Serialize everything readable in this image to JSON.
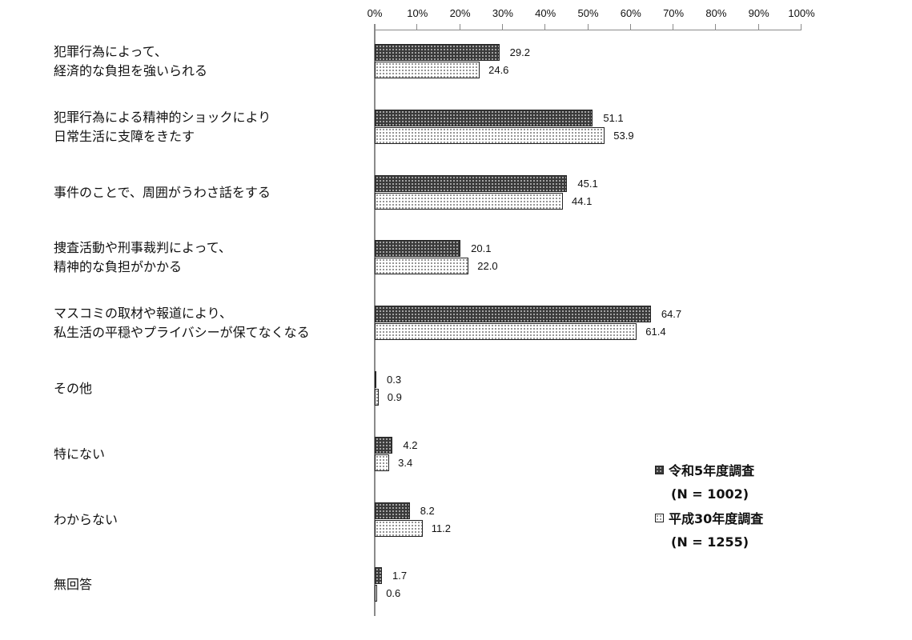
{
  "chart_data": {
    "type": "bar",
    "orientation": "horizontal",
    "title": "",
    "xlabel": "",
    "ylabel": "",
    "xlim": [
      0,
      100
    ],
    "x_ticks": [
      "0%",
      "10%",
      "20%",
      "30%",
      "40%",
      "50%",
      "60%",
      "70%",
      "80%",
      "90%",
      "100%"
    ],
    "grid": false,
    "legend_position": "lower right",
    "categories": [
      [
        "犯罪行為によって、",
        "経済的な負担を強いられる"
      ],
      [
        "犯罪行為による精神的ショックにより",
        "日常生活に支障をきたす"
      ],
      [
        "事件のことで、周囲がうわさ話をする"
      ],
      [
        "捜査活動や刑事裁判によって、",
        "精神的な負担がかかる"
      ],
      [
        "マスコミの取材や報道により、",
        "私生活の平穏やプライバシーが保てなくなる"
      ],
      [
        "その他"
      ],
      [
        "特にない"
      ],
      [
        "わからない"
      ],
      [
        "無回答"
      ]
    ],
    "series": [
      {
        "name": "令和5年度調査",
        "n_label": "(N = 1002)",
        "style": "dark",
        "values": [
          29.2,
          51.1,
          45.1,
          20.1,
          64.7,
          0.3,
          4.2,
          8.2,
          1.7
        ],
        "labels": [
          "29.2",
          "51.1",
          "45.1",
          "20.1",
          "64.7",
          "0.3",
          "4.2",
          "8.2",
          "1.7"
        ]
      },
      {
        "name": "平成30年度調査",
        "n_label": "(N = 1255)",
        "style": "light",
        "values": [
          24.6,
          53.9,
          44.1,
          22.0,
          61.4,
          0.9,
          3.4,
          11.2,
          0.6
        ],
        "labels": [
          "24.6",
          "53.9",
          "44.1",
          "22.0",
          "61.4",
          "0.9",
          "3.4",
          "11.2",
          "0.6"
        ]
      }
    ]
  },
  "colors": {
    "dark_fill": "#3a3a3a",
    "light_fill": "#ffffff",
    "axis": "#8a8a8a",
    "border": "#222222"
  }
}
